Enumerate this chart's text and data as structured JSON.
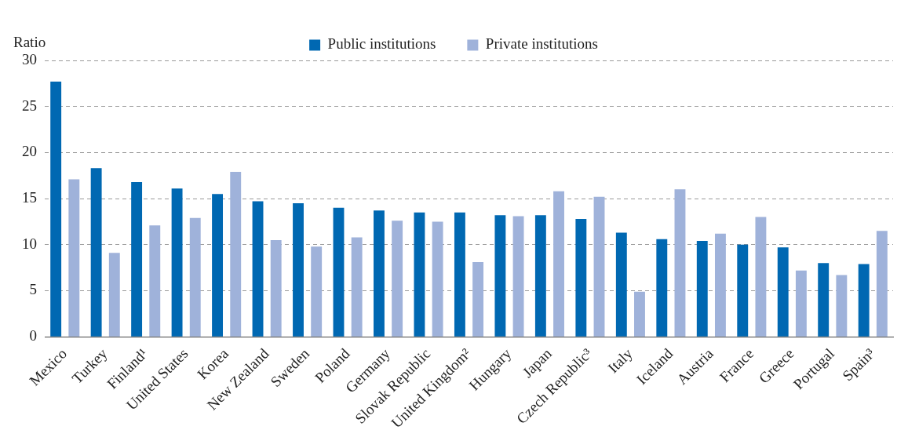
{
  "chart_data": {
    "type": "bar",
    "ylabel": "Ratio",
    "categories": [
      "Mexico",
      "Turkey",
      "Finland¹",
      "United States",
      "Korea",
      "New Zealand",
      "Sweden",
      "Poland",
      "Germany",
      "Slovak Republic",
      "United Kingdom²",
      "Hungary",
      "Japan",
      "Czech Republic³",
      "Italy",
      "Iceland",
      "Austria",
      "France",
      "Greece",
      "Portugal",
      "Spain³"
    ],
    "series": [
      {
        "name": "Public institutions",
        "color": "#0068b2",
        "values": [
          27.7,
          18.3,
          16.8,
          16.1,
          15.5,
          14.7,
          14.5,
          14.0,
          13.7,
          13.5,
          13.5,
          13.2,
          13.2,
          12.8,
          11.3,
          10.6,
          10.4,
          10.0,
          9.7,
          8.0,
          7.9
        ]
      },
      {
        "name": "Private institutions",
        "color": "#9fb2da",
        "values": [
          17.1,
          9.1,
          12.1,
          12.9,
          17.9,
          10.5,
          9.8,
          10.8,
          12.6,
          12.5,
          8.1,
          13.1,
          15.8,
          15.2,
          4.9,
          16.0,
          11.2,
          13.0,
          7.2,
          6.7,
          11.5
        ]
      }
    ],
    "ylim": [
      0,
      30
    ],
    "yticks": [
      0,
      5,
      10,
      15,
      20,
      25,
      30
    ],
    "grid": "y",
    "legend": "top"
  }
}
